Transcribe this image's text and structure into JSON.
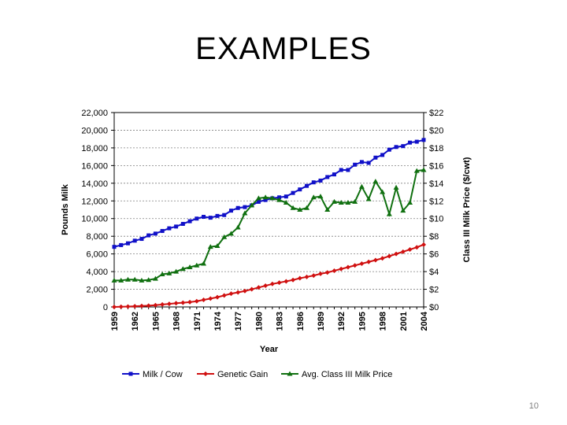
{
  "slide": {
    "title": "EXAMPLES",
    "page_number": "10"
  },
  "chart_data": {
    "type": "line",
    "title": "",
    "xlabel": "Year",
    "ylabel": "Pounds Milk",
    "y2label": "Class III Milk Price ($/cwt)",
    "xlim": [
      1959,
      2004
    ],
    "ylim": [
      0,
      22000
    ],
    "y2lim": [
      0,
      22
    ],
    "grid": true,
    "legend_position": "bottom",
    "x_ticks": [
      "1959",
      "1962",
      "1965",
      "1968",
      "1971",
      "1974",
      "1977",
      "1980",
      "1983",
      "1986",
      "1989",
      "1992",
      "1995",
      "1998",
      "2001",
      "2004"
    ],
    "y_ticks": [
      "0",
      "2,000",
      "4,000",
      "6,000",
      "8,000",
      "10,000",
      "12,000",
      "14,000",
      "16,000",
      "18,000",
      "20,000",
      "22,000"
    ],
    "y2_ticks": [
      "$0",
      "$2",
      "$4",
      "$6",
      "$8",
      "$10",
      "$12",
      "$14",
      "$16",
      "$18",
      "$20",
      "$22"
    ],
    "x": [
      1959,
      1960,
      1961,
      1962,
      1963,
      1964,
      1965,
      1966,
      1967,
      1968,
      1969,
      1970,
      1971,
      1972,
      1973,
      1974,
      1975,
      1976,
      1977,
      1978,
      1979,
      1980,
      1981,
      1982,
      1983,
      1984,
      1985,
      1986,
      1987,
      1988,
      1989,
      1990,
      1991,
      1992,
      1993,
      1994,
      1995,
      1996,
      1997,
      1998,
      1999,
      2000,
      2001,
      2002,
      2003,
      2004
    ],
    "series": [
      {
        "name": "Milk / Cow",
        "axis": "left",
        "color": "#1010c8",
        "marker": "square",
        "values": [
          6800,
          7000,
          7200,
          7500,
          7700,
          8100,
          8300,
          8600,
          8900,
          9100,
          9400,
          9700,
          10000,
          10200,
          10100,
          10300,
          10400,
          10900,
          11200,
          11300,
          11500,
          11900,
          12100,
          12300,
          12400,
          12500,
          12900,
          13300,
          13700,
          14100,
          14300,
          14700,
          15000,
          15500,
          15500,
          16100,
          16400,
          16300,
          16900,
          17200,
          17800,
          18100,
          18200,
          18600,
          18700,
          18900
        ]
      },
      {
        "name": "Genetic Gain",
        "axis": "left",
        "color": "#d01010",
        "marker": "diamond",
        "values": [
          0,
          20,
          50,
          80,
          110,
          150,
          200,
          280,
          350,
          420,
          480,
          550,
          650,
          800,
          950,
          1100,
          1300,
          1500,
          1650,
          1800,
          2000,
          2200,
          2400,
          2600,
          2750,
          2900,
          3050,
          3250,
          3400,
          3550,
          3750,
          3900,
          4100,
          4300,
          4500,
          4700,
          4900,
          5100,
          5300,
          5500,
          5750,
          6000,
          6250,
          6500,
          6750,
          7050
        ]
      },
      {
        "name": "Avg. Class III Milk Price",
        "axis": "right",
        "color": "#107010",
        "marker": "triangle",
        "values": [
          3.0,
          3.0,
          3.1,
          3.1,
          3.0,
          3.05,
          3.2,
          3.7,
          3.8,
          4.0,
          4.3,
          4.5,
          4.7,
          4.9,
          6.8,
          6.9,
          7.9,
          8.3,
          9.0,
          10.6,
          11.5,
          12.3,
          12.4,
          12.3,
          12.1,
          11.8,
          11.2,
          11.0,
          11.2,
          12.4,
          12.5,
          11.0,
          11.9,
          11.8,
          11.8,
          11.9,
          13.6,
          12.2,
          14.2,
          13.0,
          10.5,
          13.5,
          10.9,
          11.8,
          15.4,
          15.5
        ]
      }
    ]
  }
}
